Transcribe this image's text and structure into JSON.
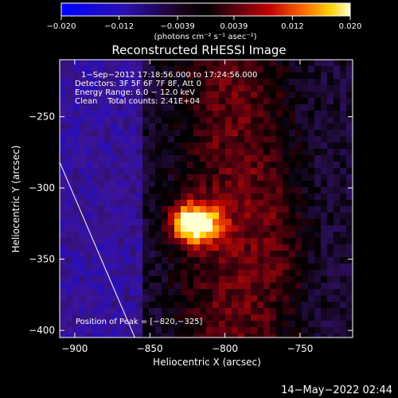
{
  "colorbar": {
    "ticks": [
      "−0.020",
      "−0.012",
      "−0.0039",
      "0.0039",
      "0.012",
      "0.020"
    ],
    "tick_values": [
      -0.02,
      -0.012,
      -0.0039,
      0.0039,
      0.012,
      0.02
    ],
    "range": [
      -0.02,
      0.02
    ],
    "unit_label": "(photons cm⁻² s⁻¹ asec⁻²)"
  },
  "title": "Reconstructed RHESSI Image",
  "info": {
    "line1": "1−Sep−2012 17:18:56.000 to 17:24:56.000",
    "line2": "Detectors: 3F 5F 6F 7F 8F, Att 0",
    "line3": "Energy Range: 6.0 − 12.0 keV",
    "line4": "Clean    Total counts: 2.41E+04"
  },
  "peak_label": "Position of Peak = [−820,−325]",
  "footer_timestamp": "14−May−2022 02:44",
  "chart_data": {
    "type": "heatmap",
    "title": "Reconstructed RHESSI Image",
    "xlabel": "Heliocentric X (arcsec)",
    "ylabel": "Heliocentric Y (arcsec)",
    "xlim": [
      -910,
      -715
    ],
    "ylim": [
      -405,
      -210
    ],
    "x_ticks": [
      -900,
      -850,
      -800,
      -750
    ],
    "x_tick_labels": [
      "−900",
      "−850",
      "−800",
      "−750"
    ],
    "y_ticks": [
      -250,
      -300,
      -350,
      -400
    ],
    "y_tick_labels": [
      "−250",
      "−300",
      "−350",
      "−400"
    ],
    "peak": {
      "x": -820,
      "y": -325
    },
    "limb_line": [
      [
        -910,
        -282
      ],
      [
        -860,
        -405
      ]
    ],
    "colormap": [
      "#0000ff",
      "#4000a0",
      "#000000",
      "#600000",
      "#c00000",
      "#ff6000",
      "#ffc000",
      "#ffffc0"
    ],
    "grid": false
  }
}
